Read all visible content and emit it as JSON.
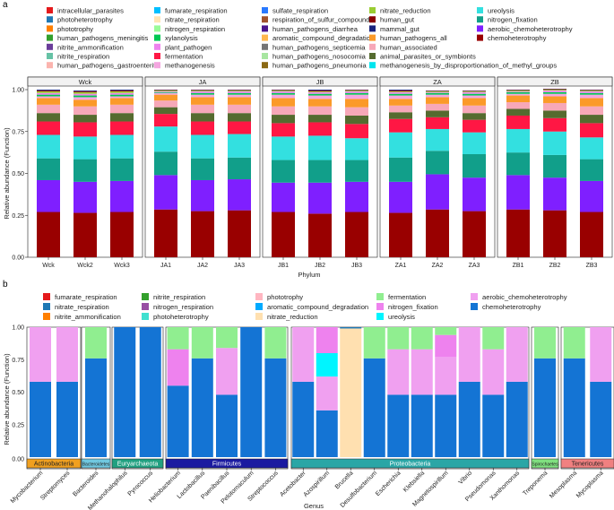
{
  "chart_data": [
    {
      "panel": "a",
      "type": "bar",
      "stacked": true,
      "ylabel": "Relative abundance (Function)",
      "xlabel": "Phylum",
      "ylim": [
        0,
        1
      ],
      "yticks": [
        "0.00",
        "0.25",
        "0.50",
        "0.75",
        "1.00"
      ],
      "facets": [
        {
          "name": "Wck",
          "samples": [
            "Wck",
            "Wck2",
            "Wck3"
          ]
        },
        {
          "name": "JA",
          "samples": [
            "JA1",
            "JA2",
            "JA3"
          ]
        },
        {
          "name": "JB",
          "samples": [
            "JB1",
            "JB2",
            "JB3"
          ]
        },
        {
          "name": "ZA",
          "samples": [
            "ZA1",
            "ZA2",
            "ZA3"
          ]
        },
        {
          "name": "ZB",
          "samples": [
            "ZB1",
            "ZB2",
            "ZB3"
          ]
        }
      ],
      "legend": [
        {
          "name": "intracellular_parasites",
          "color": "#e41a1c"
        },
        {
          "name": "photoheterotrophy",
          "color": "#1f78b4"
        },
        {
          "name": "phototrophy",
          "color": "#ff7f00"
        },
        {
          "name": "human_pathogens_meningitis",
          "color": "#33a02c"
        },
        {
          "name": "nitrite_ammonification",
          "color": "#6a3d9a"
        },
        {
          "name": "nitrite_respiration",
          "color": "#66c2a5"
        },
        {
          "name": "human_pathogens_gastroenteritis",
          "color": "#fbb4ae"
        },
        {
          "name": "fumarate_respiration",
          "color": "#00bfff"
        },
        {
          "name": "nitrate_respiration",
          "color": "#ffe4b5"
        },
        {
          "name": "nitrogen_respiration",
          "color": "#98fb98"
        },
        {
          "name": "xylanolysis",
          "color": "#00c853"
        },
        {
          "name": "plant_pathogen",
          "color": "#ee82ee"
        },
        {
          "name": "fermentation",
          "color": "#ff1744"
        },
        {
          "name": "methanogenesis",
          "color": "#f4a6e0"
        },
        {
          "name": "sulfate_respiration",
          "color": "#2979ff"
        },
        {
          "name": "respiration_of_sulfur_compounds",
          "color": "#a0522d"
        },
        {
          "name": "human_pathogens_diarrhea",
          "color": "#4a148c"
        },
        {
          "name": "aromatic_compound_degradation",
          "color": "#ffb74d"
        },
        {
          "name": "human_pathogens_septicemia",
          "color": "#757575"
        },
        {
          "name": "human_pathogens_nosocomia",
          "color": "#a8e6a1"
        },
        {
          "name": "human_pathogens_pneumonia",
          "color": "#8b6914"
        },
        {
          "name": "nitrate_reduction",
          "color": "#9acd32"
        },
        {
          "name": "human_gut",
          "color": "#8b0000"
        },
        {
          "name": "mammal_gut",
          "color": "#1a237e"
        },
        {
          "name": "human_pathogens_all",
          "color": "#fb9a29"
        },
        {
          "name": "human_associated",
          "color": "#f7a8b8"
        },
        {
          "name": "animal_parasites_or_symbionts",
          "color": "#556b2f"
        },
        {
          "name": "methanogenesis_by_disproportionation_of_methyl_groups",
          "color": "#00e5ee"
        },
        {
          "name": "ureolysis",
          "color": "#33e0e0"
        },
        {
          "name": "nitrogen_fixation",
          "color": "#119f8a"
        },
        {
          "name": "aerobic_chemoheterotrophy",
          "color": "#7f1fff"
        },
        {
          "name": "chemoheterotrophy",
          "color": "#990000"
        }
      ],
      "stack_order": [
        "chemoheterotrophy",
        "aerobic_chemoheterotrophy",
        "nitrogen_fixation",
        "ureolysis",
        "fermentation",
        "animal_parasites_or_symbionts",
        "human_associated",
        "human_pathogens_all",
        "methanogenesis",
        "xylanolysis",
        "plant_pathogen",
        "nitrate_reduction",
        "human_gut",
        "mammal_gut"
      ],
      "stack_values": [
        [
          0.27,
          0.19,
          0.13,
          0.14,
          0.08,
          0.05,
          0.05,
          0.04,
          0.01,
          0.01,
          0.01,
          0.01,
          0.005,
          0.005
        ],
        [
          0.265,
          0.185,
          0.135,
          0.135,
          0.085,
          0.045,
          0.05,
          0.04,
          0.015,
          0.01,
          0.01,
          0.01,
          0.005,
          0.005
        ],
        [
          0.27,
          0.185,
          0.135,
          0.14,
          0.08,
          0.05,
          0.05,
          0.04,
          0.01,
          0.01,
          0.01,
          0.01,
          0.005,
          0.005
        ],
        [
          0.285,
          0.205,
          0.14,
          0.15,
          0.075,
          0.04,
          0.04,
          0.035,
          0.01,
          0.005,
          0.005,
          0.005,
          0.003,
          0.002
        ],
        [
          0.275,
          0.185,
          0.13,
          0.14,
          0.08,
          0.05,
          0.05,
          0.045,
          0.015,
          0.01,
          0.01,
          0.005,
          0.003,
          0.002
        ],
        [
          0.28,
          0.185,
          0.13,
          0.14,
          0.075,
          0.05,
          0.05,
          0.045,
          0.015,
          0.01,
          0.01,
          0.005,
          0.003,
          0.002
        ],
        [
          0.27,
          0.175,
          0.135,
          0.14,
          0.08,
          0.05,
          0.05,
          0.05,
          0.02,
          0.01,
          0.01,
          0.005,
          0.003,
          0.002
        ],
        [
          0.26,
          0.185,
          0.135,
          0.145,
          0.08,
          0.045,
          0.05,
          0.045,
          0.02,
          0.01,
          0.01,
          0.005,
          0.005,
          0.005
        ],
        [
          0.27,
          0.18,
          0.13,
          0.13,
          0.085,
          0.05,
          0.05,
          0.05,
          0.025,
          0.01,
          0.01,
          0.005,
          0.003,
          0.002
        ],
        [
          0.265,
          0.185,
          0.145,
          0.15,
          0.08,
          0.04,
          0.04,
          0.04,
          0.02,
          0.01,
          0.01,
          0.005,
          0.005,
          0.005
        ],
        [
          0.285,
          0.21,
          0.14,
          0.13,
          0.07,
          0.04,
          0.04,
          0.04,
          0.015,
          0.01,
          0.005,
          0.005,
          0.003,
          0.002
        ],
        [
          0.275,
          0.2,
          0.14,
          0.13,
          0.075,
          0.04,
          0.045,
          0.045,
          0.015,
          0.01,
          0.01,
          0.005,
          0.003,
          0.002
        ],
        [
          0.285,
          0.205,
          0.135,
          0.14,
          0.08,
          0.04,
          0.04,
          0.04,
          0.01,
          0.01,
          0.005,
          0.005,
          0.003,
          0.002
        ],
        [
          0.28,
          0.195,
          0.135,
          0.14,
          0.08,
          0.045,
          0.045,
          0.04,
          0.015,
          0.01,
          0.01,
          0.005,
          0.003,
          0.002
        ],
        [
          0.27,
          0.185,
          0.13,
          0.13,
          0.085,
          0.05,
          0.05,
          0.05,
          0.02,
          0.01,
          0.01,
          0.005,
          0.003,
          0.002
        ]
      ]
    },
    {
      "panel": "b",
      "type": "bar",
      "stacked": true,
      "ylabel": "Relative abundance (Function)",
      "xlabel": "Genus",
      "ylim": [
        0,
        1
      ],
      "yticks": [
        "0.00",
        "0.25",
        "0.50",
        "0.75",
        "1.00"
      ],
      "legend": [
        {
          "name": "fumarate_respiration",
          "color": "#e41a1c"
        },
        {
          "name": "nitrate_respiration",
          "color": "#1f78b4"
        },
        {
          "name": "nitrite_ammonification",
          "color": "#ff7f00"
        },
        {
          "name": "nitrite_respiration",
          "color": "#33a02c"
        },
        {
          "name": "nitrogen_respiration",
          "color": "#984ea3"
        },
        {
          "name": "photoheterotrophy",
          "color": "#40e0d0"
        },
        {
          "name": "phototrophy",
          "color": "#ffb6c1"
        },
        {
          "name": "aromatic_compound_degradation",
          "color": "#00aaff"
        },
        {
          "name": "nitrate_reduction",
          "color": "#ffe0b0"
        },
        {
          "name": "fermentation",
          "color": "#90ee90"
        },
        {
          "name": "nitrogen_fixation",
          "color": "#ee82ee"
        },
        {
          "name": "ureolysis",
          "color": "#00f5ff"
        },
        {
          "name": "aerobic_chemoheterotrophy",
          "color": "#f0a0f0"
        },
        {
          "name": "chemoheterotrophy",
          "color": "#1474d4"
        }
      ],
      "groups": [
        {
          "name": "Actinobacteria",
          "color": "#f0a020",
          "genera": [
            "Mycobacterium",
            "Streptomyces"
          ]
        },
        {
          "name": "Bacteroidetes",
          "color": "#70c8e0",
          "genera": [
            "Bacteroides"
          ]
        },
        {
          "name": "Euryarchaeota",
          "color": "#20a080",
          "genera": [
            "Methanohalophilus",
            "Pyrococcus"
          ]
        },
        {
          "name": "Firmicutes",
          "color": "#1a1aa0",
          "genera": [
            "Heliobacterium",
            "Lactobacillus",
            "Paenibacillus",
            "Pelotomaculum",
            "Streptococcus"
          ]
        },
        {
          "name": "Proteobacteria",
          "color": "#2aa6a6",
          "genera": [
            "Acetobacter",
            "Azospirillum",
            "Brucella",
            "Desulfobacterium",
            "Escherichia",
            "Klebsiella",
            "Magnetospirillum",
            "Vibrio",
            "Pseudomonas",
            "Xanthomonas"
          ]
        },
        {
          "name": "Spirochaetes",
          "color": "#80e080",
          "genera": [
            "Treponema"
          ]
        },
        {
          "name": "Tenericutes",
          "color": "#f08080",
          "genera": [
            "Mesoplasma",
            "Mycoplasma"
          ]
        }
      ],
      "segments": [
        [
          [
            "chemoheterotrophy",
            0.58
          ],
          [
            "aerobic_chemoheterotrophy",
            0.42
          ]
        ],
        [
          [
            "chemoheterotrophy",
            0.58
          ],
          [
            "aerobic_chemoheterotrophy",
            0.42
          ]
        ],
        [
          [
            "chemoheterotrophy",
            0.76
          ],
          [
            "fermentation",
            0.24
          ]
        ],
        [
          [
            "chemoheterotrophy",
            1.0
          ]
        ],
        [
          [
            "chemoheterotrophy",
            1.0
          ]
        ],
        [
          [
            "chemoheterotrophy",
            0.55
          ],
          [
            "nitrogen_fixation",
            0.28
          ],
          [
            "fermentation",
            0.17
          ]
        ],
        [
          [
            "chemoheterotrophy",
            0.76
          ],
          [
            "fermentation",
            0.24
          ]
        ],
        [
          [
            "chemoheterotrophy",
            0.48
          ],
          [
            "aerobic_chemoheterotrophy",
            0.36
          ],
          [
            "fermentation",
            0.16
          ]
        ],
        [
          [
            "chemoheterotrophy",
            1.0
          ]
        ],
        [
          [
            "chemoheterotrophy",
            0.76
          ],
          [
            "fermentation",
            0.24
          ]
        ],
        [
          [
            "chemoheterotrophy",
            0.58
          ],
          [
            "aerobic_chemoheterotrophy",
            0.42
          ]
        ],
        [
          [
            "chemoheterotrophy",
            0.36
          ],
          [
            "aerobic_chemoheterotrophy",
            0.26
          ],
          [
            "ureolysis",
            0.18
          ],
          [
            "nitrogen_fixation",
            0.2
          ]
        ],
        [
          [
            "nitrate_reduction",
            0.99
          ],
          [
            "nitrate_respiration",
            0.01
          ]
        ],
        [
          [
            "chemoheterotrophy",
            0.76
          ],
          [
            "fermentation",
            0.24
          ]
        ],
        [
          [
            "chemoheterotrophy",
            0.48
          ],
          [
            "aerobic_chemoheterotrophy",
            0.35
          ],
          [
            "fermentation",
            0.17
          ]
        ],
        [
          [
            "chemoheterotrophy",
            0.48
          ],
          [
            "aerobic_chemoheterotrophy",
            0.35
          ],
          [
            "fermentation",
            0.17
          ]
        ],
        [
          [
            "chemoheterotrophy",
            0.48
          ],
          [
            "aerobic_chemoheterotrophy",
            0.29
          ],
          [
            "nitrogen_fixation",
            0.17
          ],
          [
            "fermentation",
            0.06
          ]
        ],
        [
          [
            "chemoheterotrophy",
            0.58
          ],
          [
            "aerobic_chemoheterotrophy",
            0.42
          ]
        ],
        [
          [
            "chemoheterotrophy",
            0.48
          ],
          [
            "aerobic_chemoheterotrophy",
            0.35
          ],
          [
            "fermentation",
            0.17
          ]
        ],
        [
          [
            "chemoheterotrophy",
            0.58
          ],
          [
            "aerobic_chemoheterotrophy",
            0.42
          ]
        ],
        [
          [
            "chemoheterotrophy",
            0.76
          ],
          [
            "fermentation",
            0.24
          ]
        ],
        [
          [
            "chemoheterotrophy",
            0.76
          ],
          [
            "fermentation",
            0.24
          ]
        ],
        [
          [
            "chemoheterotrophy",
            0.58
          ],
          [
            "aerobic_chemoheterotrophy",
            0.42
          ]
        ]
      ]
    }
  ]
}
